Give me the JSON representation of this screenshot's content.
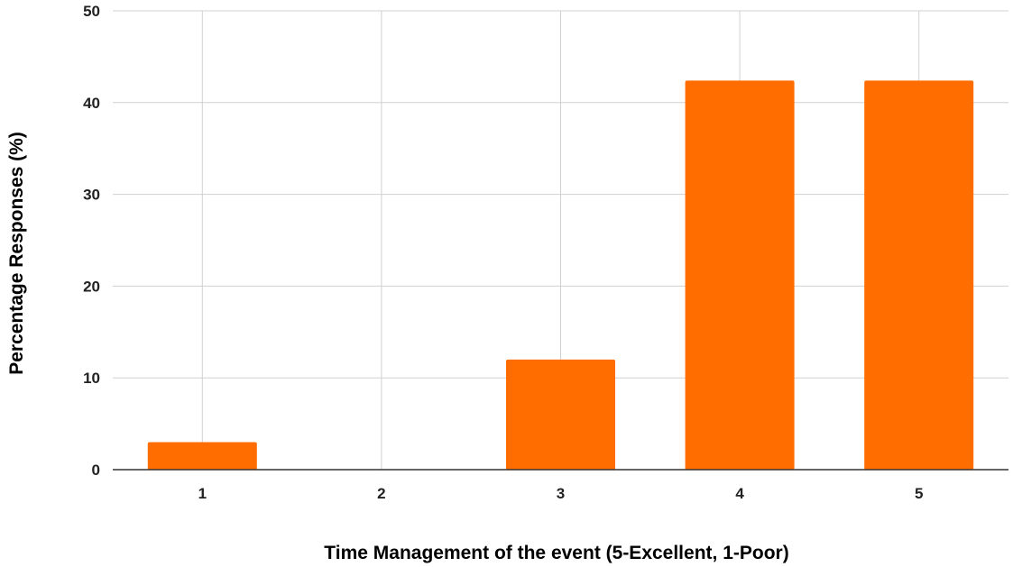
{
  "chart_data": {
    "type": "bar",
    "categories": [
      "1",
      "2",
      "3",
      "4",
      "5"
    ],
    "values": [
      3,
      0,
      12,
      42.4,
      42.4
    ],
    "title": "",
    "xlabel": "Time Management of the event (5-Excellent, 1-Poor)",
    "ylabel": "Percentage Responses (%)",
    "ylim": [
      0,
      50
    ],
    "yticks": [
      "0",
      "10",
      "20",
      "30",
      "40",
      "50"
    ],
    "grid": true,
    "legend": "none",
    "bar_color": "#ff6d01",
    "gridline_color": "#d0d0d0",
    "baseline_color": "#333333"
  }
}
